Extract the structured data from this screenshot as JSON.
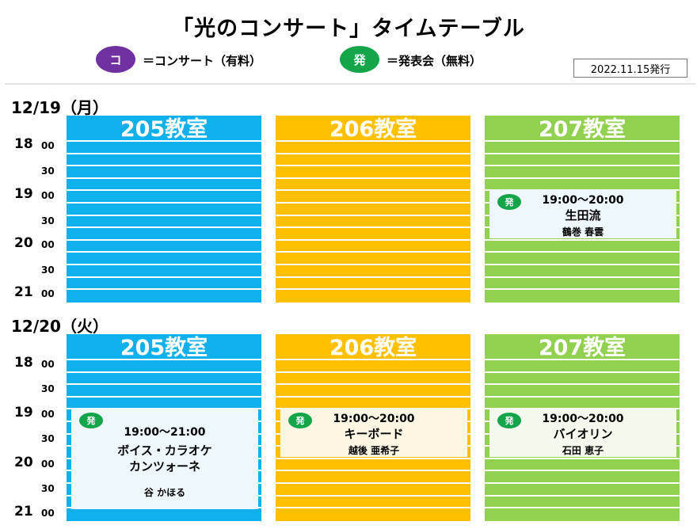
{
  "title": "「光のコンサート」タイムテーブル",
  "legend": {
    "concert": {
      "badge": "コ",
      "text": "＝コンサート（有料）",
      "color": "#7030a0"
    },
    "presentation": {
      "badge": "発",
      "text": "＝発表会（無料）",
      "color": "#14a54b"
    }
  },
  "issued": "2022.11.15発行",
  "colors": {
    "room205": "#0fb0ec",
    "room206": "#ffc000",
    "room207": "#92d050"
  },
  "times": {
    "h18": "18",
    "h19": "19",
    "h20": "20",
    "h21": "21",
    "m00": "00",
    "m30": "30"
  },
  "day1": {
    "date": "12/19（月）",
    "rooms": {
      "r205": "205教室",
      "r206": "206教室",
      "r207": "207教室"
    },
    "events": {
      "e207": {
        "badge": "発",
        "time": "19:00～20:00",
        "title": "生田流",
        "performer": "鶴巻 春雲"
      }
    }
  },
  "day2": {
    "date": "12/20（火）",
    "rooms": {
      "r205": "205教室",
      "r206": "206教室",
      "r207": "207教室"
    },
    "events": {
      "e205": {
        "badge": "発",
        "time": "19:00～21:00",
        "title_line1": "ボイス・カラオケ",
        "title_line2": "カンツォーネ",
        "performer": "谷 かほる"
      },
      "e206": {
        "badge": "発",
        "time": "19:00～20:00",
        "title": "キーボード",
        "performer": "越後 亜希子"
      },
      "e207": {
        "badge": "発",
        "time": "19:00～20:00",
        "title": "バイオリン",
        "performer": "石田 恵子"
      }
    }
  }
}
